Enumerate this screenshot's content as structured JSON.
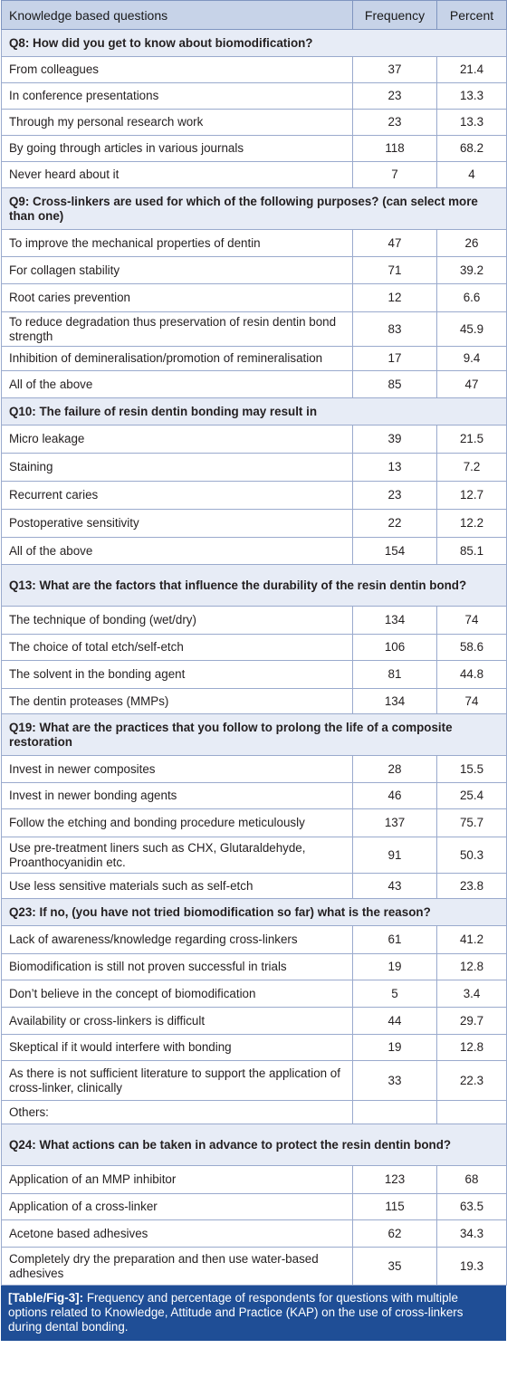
{
  "header": {
    "question": "Knowledge based questions",
    "frequency": "Frequency",
    "percent": "Percent"
  },
  "sections": [
    {
      "title": "Q8: How did you get to know about biomodification?",
      "rows": [
        {
          "label": "From colleagues",
          "freq": "37",
          "pct": "21.4"
        },
        {
          "label": "In conference presentations",
          "freq": "23",
          "pct": "13.3"
        },
        {
          "label": "Through my personal research work",
          "freq": "23",
          "pct": "13.3"
        },
        {
          "label": "By going through articles in various journals",
          "freq": "118",
          "pct": "68.2"
        },
        {
          "label": "Never heard about it",
          "freq": "7",
          "pct": "4"
        }
      ]
    },
    {
      "title": "Q9: Cross-linkers are used for which of the following purposes? (can select more than one)",
      "rows": [
        {
          "label": "To improve the mechanical properties of dentin",
          "freq": "47",
          "pct": "26"
        },
        {
          "label": "For collagen stability",
          "freq": "71",
          "pct": "39.2"
        },
        {
          "label": "Root caries prevention",
          "freq": "12",
          "pct": "6.6"
        },
        {
          "label": "To reduce degradation thus preservation of resin dentin bond strength",
          "freq": "83",
          "pct": "45.9"
        },
        {
          "label": "Inhibition of demineralisation/promotion of remineralisation",
          "freq": "17",
          "pct": "9.4"
        },
        {
          "label": "All of the above",
          "freq": "85",
          "pct": "47"
        }
      ]
    },
    {
      "title": "Q10: The failure of resin dentin bonding may result in",
      "rows": [
        {
          "label": "Micro leakage",
          "freq": "39",
          "pct": "21.5"
        },
        {
          "label": "Staining",
          "freq": "13",
          "pct": "7.2"
        },
        {
          "label": "Recurrent caries",
          "freq": "23",
          "pct": "12.7"
        },
        {
          "label": "Postoperative sensitivity",
          "freq": "22",
          "pct": "12.2"
        },
        {
          "label": "All of the above",
          "freq": "154",
          "pct": "85.1"
        }
      ]
    },
    {
      "title": "Q13: What are the factors that influence the durability of the resin dentin bond?",
      "rows": [
        {
          "label": "The technique of bonding (wet/dry)",
          "freq": "134",
          "pct": "74"
        },
        {
          "label": "The choice of total etch/self-etch",
          "freq": "106",
          "pct": "58.6"
        },
        {
          "label": "The solvent in the bonding agent",
          "freq": "81",
          "pct": "44.8"
        },
        {
          "label": "The dentin proteases (MMPs)",
          "freq": "134",
          "pct": "74"
        }
      ]
    },
    {
      "title": "Q19: What are the practices that you follow to prolong the life of a composite restoration",
      "rows": [
        {
          "label": "Invest in newer composites",
          "freq": "28",
          "pct": "15.5"
        },
        {
          "label": "Invest in newer bonding agents",
          "freq": "46",
          "pct": "25.4"
        },
        {
          "label": "Follow the etching and bonding procedure meticulously",
          "freq": "137",
          "pct": "75.7"
        },
        {
          "label": "Use pre-treatment liners such as CHX, Glutaraldehyde, Proanthocyanidin etc.",
          "freq": "91",
          "pct": "50.3"
        },
        {
          "label": "Use less sensitive materials such as self-etch",
          "freq": "43",
          "pct": "23.8"
        }
      ]
    },
    {
      "title": "Q23: If no, (you have not tried biomodification so far) what is the reason?",
      "rows": [
        {
          "label": "Lack of awareness/knowledge regarding cross-linkers",
          "freq": "61",
          "pct": "41.2"
        },
        {
          "label": "Biomodification is still not proven successful in trials",
          "freq": "19",
          "pct": "12.8"
        },
        {
          "label": "Don’t believe in the concept of biomodification",
          "freq": "5",
          "pct": "3.4"
        },
        {
          "label": "Availability or cross-linkers is difficult",
          "freq": "44",
          "pct": "29.7"
        },
        {
          "label": "Skeptical if it would interfere with bonding",
          "freq": "19",
          "pct": "12.8"
        },
        {
          "label": "As there is not sufficient literature to support the application of cross-linker, clinically",
          "freq": "33",
          "pct": "22.3"
        },
        {
          "label": "Others:",
          "freq": "",
          "pct": ""
        }
      ]
    },
    {
      "title": "Q24: What actions can be taken in advance to protect the resin dentin bond?",
      "rows": [
        {
          "label": "Application of an MMP inhibitor",
          "freq": "123",
          "pct": "68"
        },
        {
          "label": "Application of a cross-linker",
          "freq": "115",
          "pct": "63.5"
        },
        {
          "label": "Acetone based adhesives",
          "freq": "62",
          "pct": "34.3"
        },
        {
          "label": "Completely dry the preparation and then use water-based adhesives",
          "freq": "35",
          "pct": "19.3"
        }
      ]
    }
  ],
  "caption": {
    "label": "[Table/Fig-3]:",
    "text": "Frequency and percentage of respondents for questions with multiple options related to Knowledge, Attitude and Practice (KAP) on the use of cross-linkers during dental bonding."
  }
}
